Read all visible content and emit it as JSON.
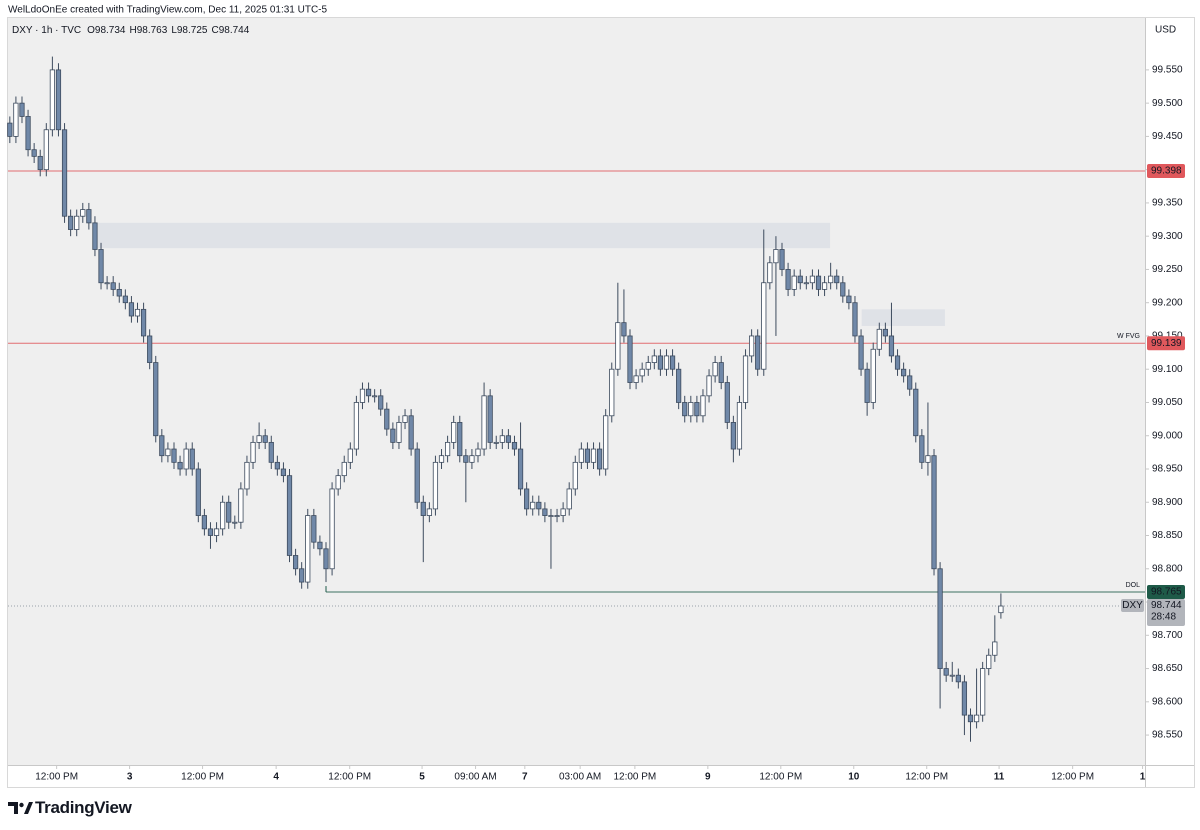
{
  "header": "WelLdoOnEe created with TradingView.com, Dec 11, 2025 01:31 UTC-5",
  "footer": {
    "brand": "TradingView"
  },
  "chart_data": {
    "type": "candlestick",
    "legend": {
      "symbol": "DXY · 1h · TVC",
      "items": [
        {
          "key": "O",
          "value": 98.734
        },
        {
          "key": "H",
          "value": 98.763
        },
        {
          "key": "L",
          "value": 98.725
        },
        {
          "key": "C",
          "value": 98.744
        }
      ]
    },
    "currency": "USD",
    "bull_color": "#ffffff",
    "bear_color": "#7088a8",
    "outline_color": "#3d4b5e",
    "xlim": [
      -0.3,
      186.7
    ],
    "xticks": [
      {
        "value": 7.7,
        "label": "12:00 PM"
      },
      {
        "value": 19.7,
        "label": "3"
      },
      {
        "value": 31.7,
        "label": "12:00 PM"
      },
      {
        "value": 43.8,
        "label": "4"
      },
      {
        "value": 55.9,
        "label": "12:00 PM"
      },
      {
        "value": 67.8,
        "label": "5"
      },
      {
        "value": 76.6,
        "label": "09:00 AM"
      },
      {
        "value": 84.7,
        "label": "7"
      },
      {
        "value": 93.8,
        "label": "03:00 AM"
      },
      {
        "value": 102.8,
        "label": "12:00 PM"
      },
      {
        "value": 114.8,
        "label": "9"
      },
      {
        "value": 126.8,
        "label": "12:00 PM"
      },
      {
        "value": 138.8,
        "label": "10"
      },
      {
        "value": 150.8,
        "label": "12:00 PM"
      },
      {
        "value": 162.7,
        "label": "11"
      },
      {
        "value": 174.8,
        "label": "12:00 PM"
      },
      {
        "value": 186.3,
        "label": "1"
      }
    ],
    "ylim": [
      98.505,
      99.628
    ],
    "yticks": [
      {
        "value": 98.55,
        "label": "98.550"
      },
      {
        "value": 98.6,
        "label": "98.600"
      },
      {
        "value": 98.65,
        "label": "98.650"
      },
      {
        "value": 98.7,
        "label": "98.700"
      },
      {
        "value": 98.75,
        "label": "98.750"
      },
      {
        "value": 98.8,
        "label": "98.800"
      },
      {
        "value": 98.85,
        "label": "98.850"
      },
      {
        "value": 98.9,
        "label": "98.900"
      },
      {
        "value": 98.95,
        "label": "98.950"
      },
      {
        "value": 99.0,
        "label": "99.000"
      },
      {
        "value": 99.05,
        "label": "99.050"
      },
      {
        "value": 99.1,
        "label": "99.100"
      },
      {
        "value": 99.15,
        "label": "99.150"
      },
      {
        "value": 99.2,
        "label": "99.200"
      },
      {
        "value": 99.25,
        "label": "99.250"
      },
      {
        "value": 99.3,
        "label": "99.300"
      },
      {
        "value": 99.35,
        "label": "99.350"
      },
      {
        "value": 99.4,
        "label": "99.400"
      },
      {
        "value": 99.45,
        "label": "99.450"
      },
      {
        "value": 99.5,
        "label": "99.500"
      },
      {
        "value": 99.55,
        "label": "99.550"
      }
    ],
    "zones": [
      {
        "x": [
          14,
          134.9
        ],
        "y": [
          99.282,
          99.32
        ]
      },
      {
        "x": [
          140.1,
          153.8
        ],
        "y": [
          99.165,
          99.19
        ]
      }
    ],
    "levels": [
      {
        "value": 99.398,
        "color": "#e0585c"
      },
      {
        "value": 99.139,
        "tag": "W FVG",
        "color": "#e0585c"
      },
      {
        "value": 98.765,
        "tag": "DOL",
        "color": "#1e5a48",
        "start": 52
      }
    ],
    "current": {
      "symbol": "DXY",
      "value": 98.744,
      "countdown": "28:48"
    },
    "open": [
      99.47,
      99.45,
      99.5,
      99.48,
      99.43,
      99.42,
      99.4,
      99.46,
      99.55,
      99.46,
      99.33,
      99.31,
      99.33,
      99.34,
      99.32,
      99.28,
      99.23,
      99.23,
      99.22,
      99.21,
      99.2,
      99.18,
      99.19,
      99.15,
      99.11,
      99.0,
      98.97,
      98.98,
      98.96,
      98.95,
      98.98,
      98.95,
      98.88,
      98.86,
      98.85,
      98.86,
      98.9,
      98.87,
      98.87,
      98.92,
      98.96,
      98.99,
      99.0,
      98.99,
      98.96,
      98.95,
      98.94,
      98.82,
      98.8,
      98.78,
      98.88,
      98.84,
      98.83,
      98.8,
      98.92,
      98.94,
      98.96,
      98.98,
      99.05,
      99.07,
      99.06,
      99.06,
      99.04,
      99.01,
      98.99,
      99.02,
      99.03,
      98.98,
      98.9,
      98.88,
      98.89,
      98.96,
      98.97,
      98.99,
      99.02,
      98.97,
      98.96,
      98.97,
      98.98,
      99.06,
      98.99,
      98.99,
      99.0,
      98.99,
      98.98,
      98.92,
      98.89,
      98.9,
      98.89,
      98.88,
      98.88,
      98.88,
      98.89,
      98.92,
      98.96,
      98.98,
      98.96,
      98.98,
      98.95,
      99.03,
      99.1,
      99.17,
      99.15,
      99.08,
      99.09,
      99.1,
      99.11,
      99.12,
      99.1,
      99.12,
      99.1,
      99.05,
      99.03,
      99.05,
      99.03,
      99.06,
      99.09,
      99.11,
      99.08,
      99.02,
      98.98,
      99.05,
      99.12,
      99.15,
      99.1,
      99.23,
      99.26,
      99.28,
      99.25,
      99.22,
      99.24,
      99.23,
      99.23,
      99.24,
      99.22,
      99.23,
      99.24,
      99.23,
      99.21,
      99.2,
      99.15,
      99.1,
      99.05,
      99.13,
      99.16,
      99.15,
      99.12,
      99.1,
      99.09,
      99.07,
      99.0,
      98.96,
      98.97,
      98.8,
      98.65,
      98.64,
      98.64,
      98.63,
      98.58,
      98.57,
      98.58,
      98.65,
      98.67,
      98.734
    ],
    "high": [
      99.48,
      99.51,
      99.51,
      99.49,
      99.44,
      99.43,
      99.47,
      99.57,
      99.56,
      99.47,
      99.34,
      99.34,
      99.35,
      99.35,
      99.33,
      99.29,
      99.24,
      99.24,
      99.23,
      99.22,
      99.21,
      99.2,
      99.2,
      99.16,
      99.12,
      99.01,
      98.99,
      98.99,
      98.97,
      98.99,
      98.99,
      98.96,
      98.89,
      98.87,
      98.87,
      98.91,
      98.91,
      98.88,
      98.93,
      98.97,
      99.0,
      99.02,
      99.01,
      99.0,
      98.97,
      98.96,
      98.95,
      98.83,
      98.81,
      98.89,
      98.89,
      98.85,
      98.84,
      98.93,
      98.95,
      98.97,
      98.99,
      99.06,
      99.08,
      99.08,
      99.07,
      99.07,
      99.05,
      99.02,
      99.03,
      99.04,
      99.04,
      98.99,
      98.91,
      98.9,
      98.97,
      98.98,
      99.0,
      99.03,
      99.03,
      98.98,
      98.98,
      98.99,
      99.08,
      99.07,
      99.0,
      99.01,
      99.01,
      99.0,
      99.02,
      98.93,
      98.91,
      98.91,
      98.9,
      98.89,
      98.89,
      98.9,
      98.93,
      98.97,
      98.99,
      98.99,
      98.99,
      98.99,
      99.04,
      99.11,
      99.23,
      99.22,
      99.16,
      99.1,
      99.11,
      99.12,
      99.13,
      99.13,
      99.13,
      99.13,
      99.11,
      99.06,
      99.06,
      99.06,
      99.07,
      99.1,
      99.12,
      99.12,
      99.09,
      99.03,
      99.06,
      99.13,
      99.16,
      99.16,
      99.31,
      99.27,
      99.3,
      99.29,
      99.26,
      99.25,
      99.25,
      99.24,
      99.25,
      99.25,
      99.24,
      99.26,
      99.25,
      99.24,
      99.22,
      99.21,
      99.16,
      99.11,
      99.14,
      99.17,
      99.17,
      99.2,
      99.13,
      99.11,
      99.1,
      99.08,
      99.01,
      99.05,
      98.98,
      98.81,
      98.66,
      98.66,
      98.65,
      98.64,
      98.59,
      98.65,
      98.66,
      98.68,
      98.73,
      98.763
    ],
    "low": [
      99.44,
      99.44,
      99.47,
      99.42,
      99.41,
      99.39,
      99.39,
      99.45,
      99.45,
      99.32,
      99.3,
      99.3,
      99.32,
      99.31,
      99.27,
      99.22,
      99.22,
      99.21,
      99.2,
      99.19,
      99.17,
      99.17,
      99.14,
      99.1,
      98.99,
      98.96,
      98.96,
      98.95,
      98.94,
      98.94,
      98.94,
      98.87,
      98.85,
      98.83,
      98.84,
      98.85,
      98.86,
      98.86,
      98.86,
      98.91,
      98.95,
      98.98,
      98.98,
      98.95,
      98.94,
      98.93,
      98.81,
      98.79,
      98.77,
      98.77,
      98.83,
      98.82,
      98.78,
      98.79,
      98.91,
      98.93,
      98.95,
      98.97,
      99.04,
      99.05,
      99.05,
      99.03,
      99.0,
      98.98,
      98.98,
      99.01,
      98.97,
      98.89,
      98.81,
      98.87,
      98.88,
      98.95,
      98.96,
      98.98,
      98.96,
      98.9,
      98.95,
      98.96,
      98.97,
      98.98,
      98.98,
      98.98,
      98.98,
      98.97,
      98.91,
      98.88,
      98.88,
      98.88,
      98.87,
      98.8,
      98.87,
      98.87,
      98.88,
      98.91,
      98.95,
      98.95,
      98.95,
      98.94,
      98.94,
      99.02,
      99.09,
      99.14,
      99.07,
      99.07,
      99.08,
      99.09,
      99.1,
      99.09,
      99.09,
      99.09,
      99.04,
      99.02,
      99.02,
      99.02,
      99.02,
      99.05,
      99.08,
      99.07,
      99.01,
      98.96,
      98.97,
      99.04,
      99.11,
      99.09,
      99.09,
      99.22,
      99.15,
      99.24,
      99.21,
      99.21,
      99.22,
      99.22,
      99.22,
      99.21,
      99.21,
      99.22,
      99.22,
      99.2,
      99.19,
      99.14,
      99.09,
      99.03,
      99.04,
      99.12,
      99.14,
      99.11,
      99.09,
      99.08,
      99.06,
      98.99,
      98.95,
      98.94,
      98.79,
      98.59,
      98.63,
      98.63,
      98.62,
      98.55,
      98.54,
      98.56,
      98.57,
      98.64,
      98.66,
      98.725
    ],
    "close": [
      99.45,
      99.5,
      99.48,
      99.43,
      99.42,
      99.4,
      99.46,
      99.55,
      99.46,
      99.33,
      99.31,
      99.33,
      99.34,
      99.32,
      99.28,
      99.23,
      99.23,
      99.22,
      99.21,
      99.2,
      99.18,
      99.19,
      99.15,
      99.11,
      99.0,
      98.97,
      98.98,
      98.96,
      98.95,
      98.98,
      98.95,
      98.88,
      98.86,
      98.85,
      98.86,
      98.9,
      98.87,
      98.87,
      98.92,
      98.96,
      98.99,
      99.0,
      98.99,
      98.96,
      98.95,
      98.94,
      98.82,
      98.8,
      98.78,
      98.88,
      98.84,
      98.83,
      98.8,
      98.92,
      98.94,
      98.96,
      98.98,
      99.05,
      99.07,
      99.06,
      99.06,
      99.04,
      99.01,
      98.99,
      99.02,
      99.03,
      98.98,
      98.9,
      98.88,
      98.89,
      98.96,
      98.97,
      98.99,
      99.02,
      98.97,
      98.96,
      98.97,
      98.98,
      99.06,
      98.99,
      98.99,
      99.0,
      98.99,
      98.98,
      98.92,
      98.89,
      98.9,
      98.89,
      98.88,
      98.88,
      98.88,
      98.89,
      98.92,
      98.96,
      98.98,
      98.96,
      98.98,
      98.95,
      99.03,
      99.1,
      99.17,
      99.15,
      99.08,
      99.09,
      99.1,
      99.11,
      99.12,
      99.1,
      99.12,
      99.1,
      99.05,
      99.03,
      99.05,
      99.03,
      99.06,
      99.09,
      99.11,
      99.08,
      99.02,
      98.98,
      99.05,
      99.12,
      99.15,
      99.1,
      99.23,
      99.26,
      99.28,
      99.25,
      99.22,
      99.24,
      99.23,
      99.23,
      99.24,
      99.22,
      99.23,
      99.24,
      99.23,
      99.21,
      99.2,
      99.15,
      99.1,
      99.05,
      99.13,
      99.16,
      99.15,
      99.12,
      99.1,
      99.09,
      99.07,
      99.0,
      98.96,
      98.97,
      98.8,
      98.65,
      98.64,
      98.64,
      98.63,
      98.58,
      98.57,
      98.58,
      98.65,
      98.67,
      98.69,
      98.744
    ]
  }
}
